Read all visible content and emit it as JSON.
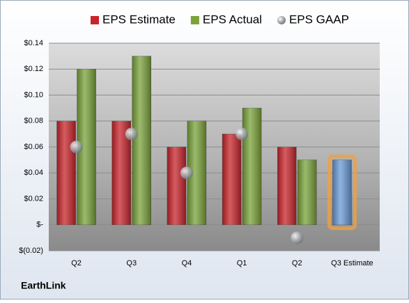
{
  "chart_data": {
    "type": "bar",
    "brand": "EarthLink",
    "categories": [
      "Q2",
      "Q3",
      "Q4",
      "Q1",
      "Q2",
      "Q3 Estimate"
    ],
    "series": [
      {
        "name": "EPS Estimate",
        "color": "#c8252b",
        "values": [
          0.08,
          0.08,
          0.06,
          0.07,
          0.06,
          0.05
        ],
        "last_color": "#6a9ad6"
      },
      {
        "name": "EPS Actual",
        "color": "#7aa33a",
        "values": [
          0.12,
          0.13,
          0.08,
          0.09,
          0.05,
          null
        ]
      },
      {
        "name": "EPS GAAP",
        "color": "#a8adb3",
        "marker": "sphere",
        "values": [
          0.06,
          0.07,
          0.04,
          0.07,
          -0.01,
          null
        ]
      }
    ],
    "ylim": [
      -0.02,
      0.14
    ],
    "yticks": [
      {
        "value": -0.02,
        "label": "$(0.02)"
      },
      {
        "value": 0,
        "label": "$-"
      },
      {
        "value": 0.02,
        "label": "$0.02"
      },
      {
        "value": 0.04,
        "label": "$0.04"
      },
      {
        "value": 0.06,
        "label": "$0.06"
      },
      {
        "value": 0.08,
        "label": "$0.08"
      },
      {
        "value": 0.1,
        "label": "$0.10"
      },
      {
        "value": 0.12,
        "label": "$0.12"
      },
      {
        "value": 0.14,
        "label": "$0.14"
      }
    ],
    "grid": true
  }
}
